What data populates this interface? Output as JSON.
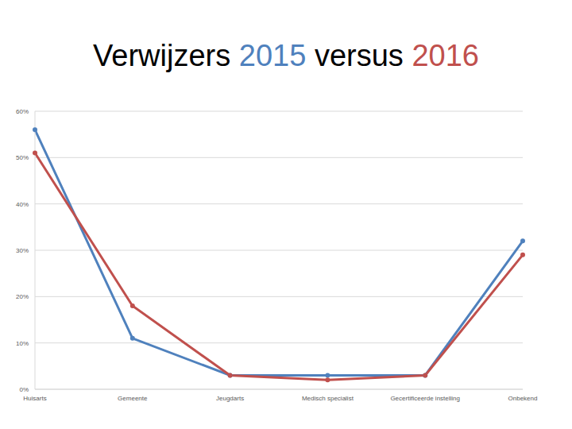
{
  "chart_data": {
    "type": "line",
    "title": "Verwijzers 2015 versus 2016",
    "categories": [
      "Huisarts",
      "Gemeente",
      "Jeugdarts",
      "Medisch specialist",
      "Gecertificeerde instelling",
      "Onbekend"
    ],
    "series": [
      {
        "name": "2015",
        "color": "#4f81bd",
        "values": [
          56,
          11,
          3,
          3,
          3,
          32
        ]
      },
      {
        "name": "2016",
        "color": "#c0504d",
        "values": [
          51,
          18,
          3,
          2,
          3,
          29
        ]
      }
    ],
    "ylim": [
      0,
      60
    ],
    "yticks": [
      {
        "value": 0,
        "label": "0%"
      },
      {
        "value": 10,
        "label": "10%"
      },
      {
        "value": 20,
        "label": "20%"
      },
      {
        "value": 30,
        "label": "30%"
      },
      {
        "value": 40,
        "label": "40%"
      },
      {
        "value": 50,
        "label": "50%"
      },
      {
        "value": 60,
        "label": "60%"
      }
    ],
    "grid": true,
    "marker": "circle"
  }
}
